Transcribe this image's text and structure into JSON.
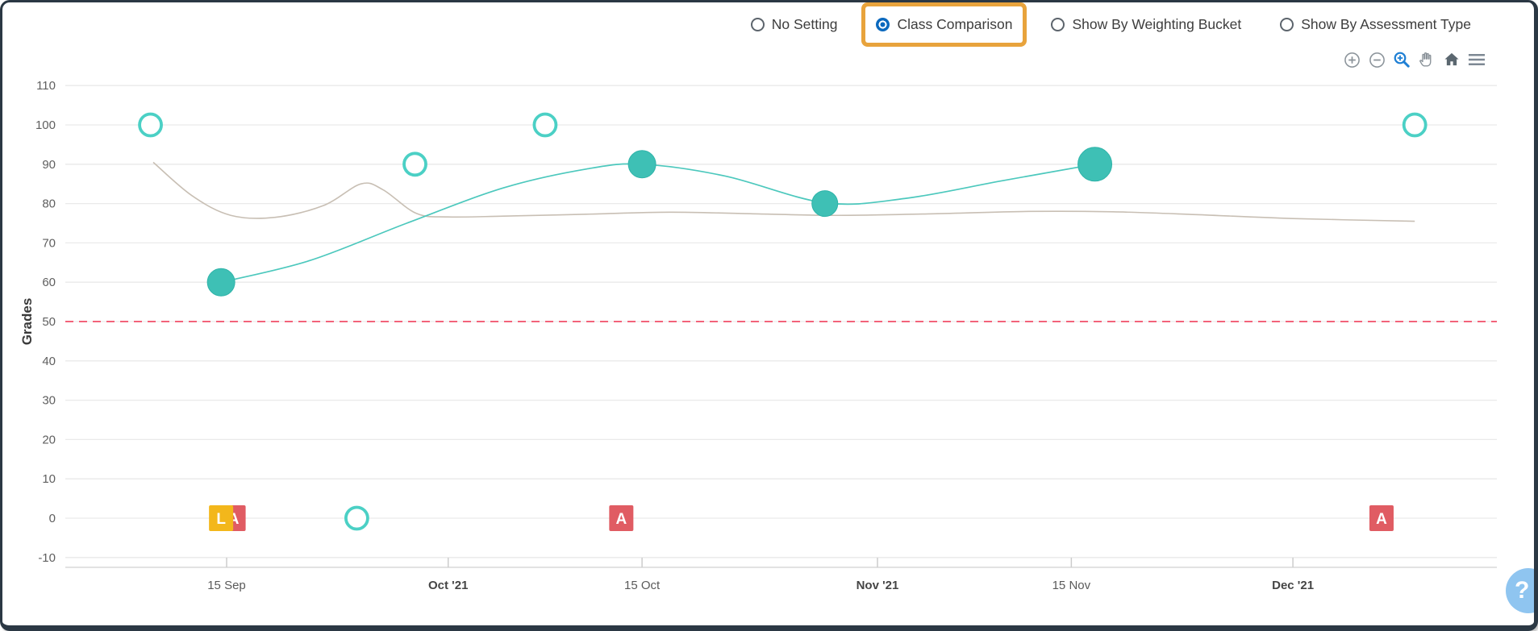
{
  "view_options": {
    "items": [
      {
        "label": "No Setting",
        "selected": false,
        "highlighted": false
      },
      {
        "label": "Class Comparison",
        "selected": true,
        "highlighted": true
      },
      {
        "label": "Show By Weighting Bucket",
        "selected": false,
        "highlighted": false
      },
      {
        "label": "Show By Assessment Type",
        "selected": false,
        "highlighted": false
      }
    ],
    "highlight_color": "#E8A33C",
    "selected_color": "#0B69BE"
  },
  "toolbar": {
    "icon_color": "#8A9299",
    "active_color": "#1E7FD4",
    "icons": [
      "zoom-in",
      "zoom-out",
      "zoom-selection",
      "pan",
      "home",
      "menu"
    ],
    "active_icon": "zoom-selection"
  },
  "help_button": {
    "label": "?",
    "color": "#8FC5F0"
  },
  "chart_data": {
    "type": "line",
    "title": "",
    "xlabel": "",
    "ylabel": "Grades",
    "ylim": [
      -10,
      110
    ],
    "grid": "horizontal",
    "legend": "none",
    "y_ticks": [
      110,
      100,
      90,
      80,
      70,
      60,
      50,
      40,
      30,
      20,
      10,
      0,
      -10
    ],
    "x_ticks": [
      {
        "d": 14,
        "label": "15 Sep",
        "bold": false
      },
      {
        "d": 30,
        "label": "Oct '21",
        "bold": true
      },
      {
        "d": 44,
        "label": "15 Oct",
        "bold": false
      },
      {
        "d": 61,
        "label": "Nov '21",
        "bold": true
      },
      {
        "d": 75,
        "label": "15 Nov",
        "bold": false
      },
      {
        "d": 91,
        "label": "Dec '21",
        "bold": true
      }
    ],
    "threshold": {
      "value": 50,
      "color": "#F2637A",
      "style": "dashed"
    },
    "series": [
      {
        "name": "class-average",
        "color": "#C8BFB4",
        "width": 1.6,
        "points": [
          [
            8.7,
            90.5
          ],
          [
            11.5,
            82
          ],
          [
            14.3,
            77
          ],
          [
            17.5,
            76.5
          ],
          [
            21,
            79.5
          ],
          [
            23.7,
            85
          ],
          [
            25.3,
            83.5
          ],
          [
            27.7,
            77.5
          ],
          [
            30,
            76.6
          ],
          [
            34,
            76.8
          ],
          [
            40,
            77.3
          ],
          [
            46,
            77.8
          ],
          [
            52,
            77.4
          ],
          [
            58,
            77
          ],
          [
            65,
            77.4
          ],
          [
            72,
            78
          ],
          [
            78,
            77.9
          ],
          [
            84,
            77.2
          ],
          [
            91,
            76.2
          ],
          [
            99.8,
            75.5
          ]
        ]
      },
      {
        "name": "student-grades",
        "color": "#4CC8BD",
        "width": 1.7,
        "points": [
          [
            13.6,
            60
          ],
          [
            20,
            65.5
          ],
          [
            27,
            75
          ],
          [
            34,
            84
          ],
          [
            40,
            88.8
          ],
          [
            44,
            90
          ],
          [
            50,
            87
          ],
          [
            57.2,
            80.2
          ],
          [
            63,
            81.3
          ],
          [
            70,
            85.8
          ],
          [
            76.7,
            90
          ]
        ]
      }
    ],
    "bubbles": {
      "color": "#3EC0B5",
      "points": [
        {
          "d": 13.6,
          "v": 60,
          "r": 17
        },
        {
          "d": 44,
          "v": 90,
          "r": 17
        },
        {
          "d": 57.2,
          "v": 80,
          "r": 16
        },
        {
          "d": 76.7,
          "v": 90,
          "r": 21
        }
      ]
    },
    "open_points": {
      "color": "#4BD0C5",
      "points": [
        {
          "d": 8.5,
          "v": 100
        },
        {
          "d": 23.4,
          "v": 0
        },
        {
          "d": 27.6,
          "v": 90
        },
        {
          "d": 37,
          "v": 100
        },
        {
          "d": 99.8,
          "v": 100
        }
      ]
    },
    "markers": [
      {
        "d": 14.5,
        "label": "A",
        "color": "#E05C63"
      },
      {
        "d": 13.6,
        "label": "L",
        "color": "#F3B71B"
      },
      {
        "d": 42.5,
        "label": "A",
        "color": "#E05C63"
      },
      {
        "d": 97.4,
        "label": "A",
        "color": "#E05C63"
      }
    ]
  }
}
